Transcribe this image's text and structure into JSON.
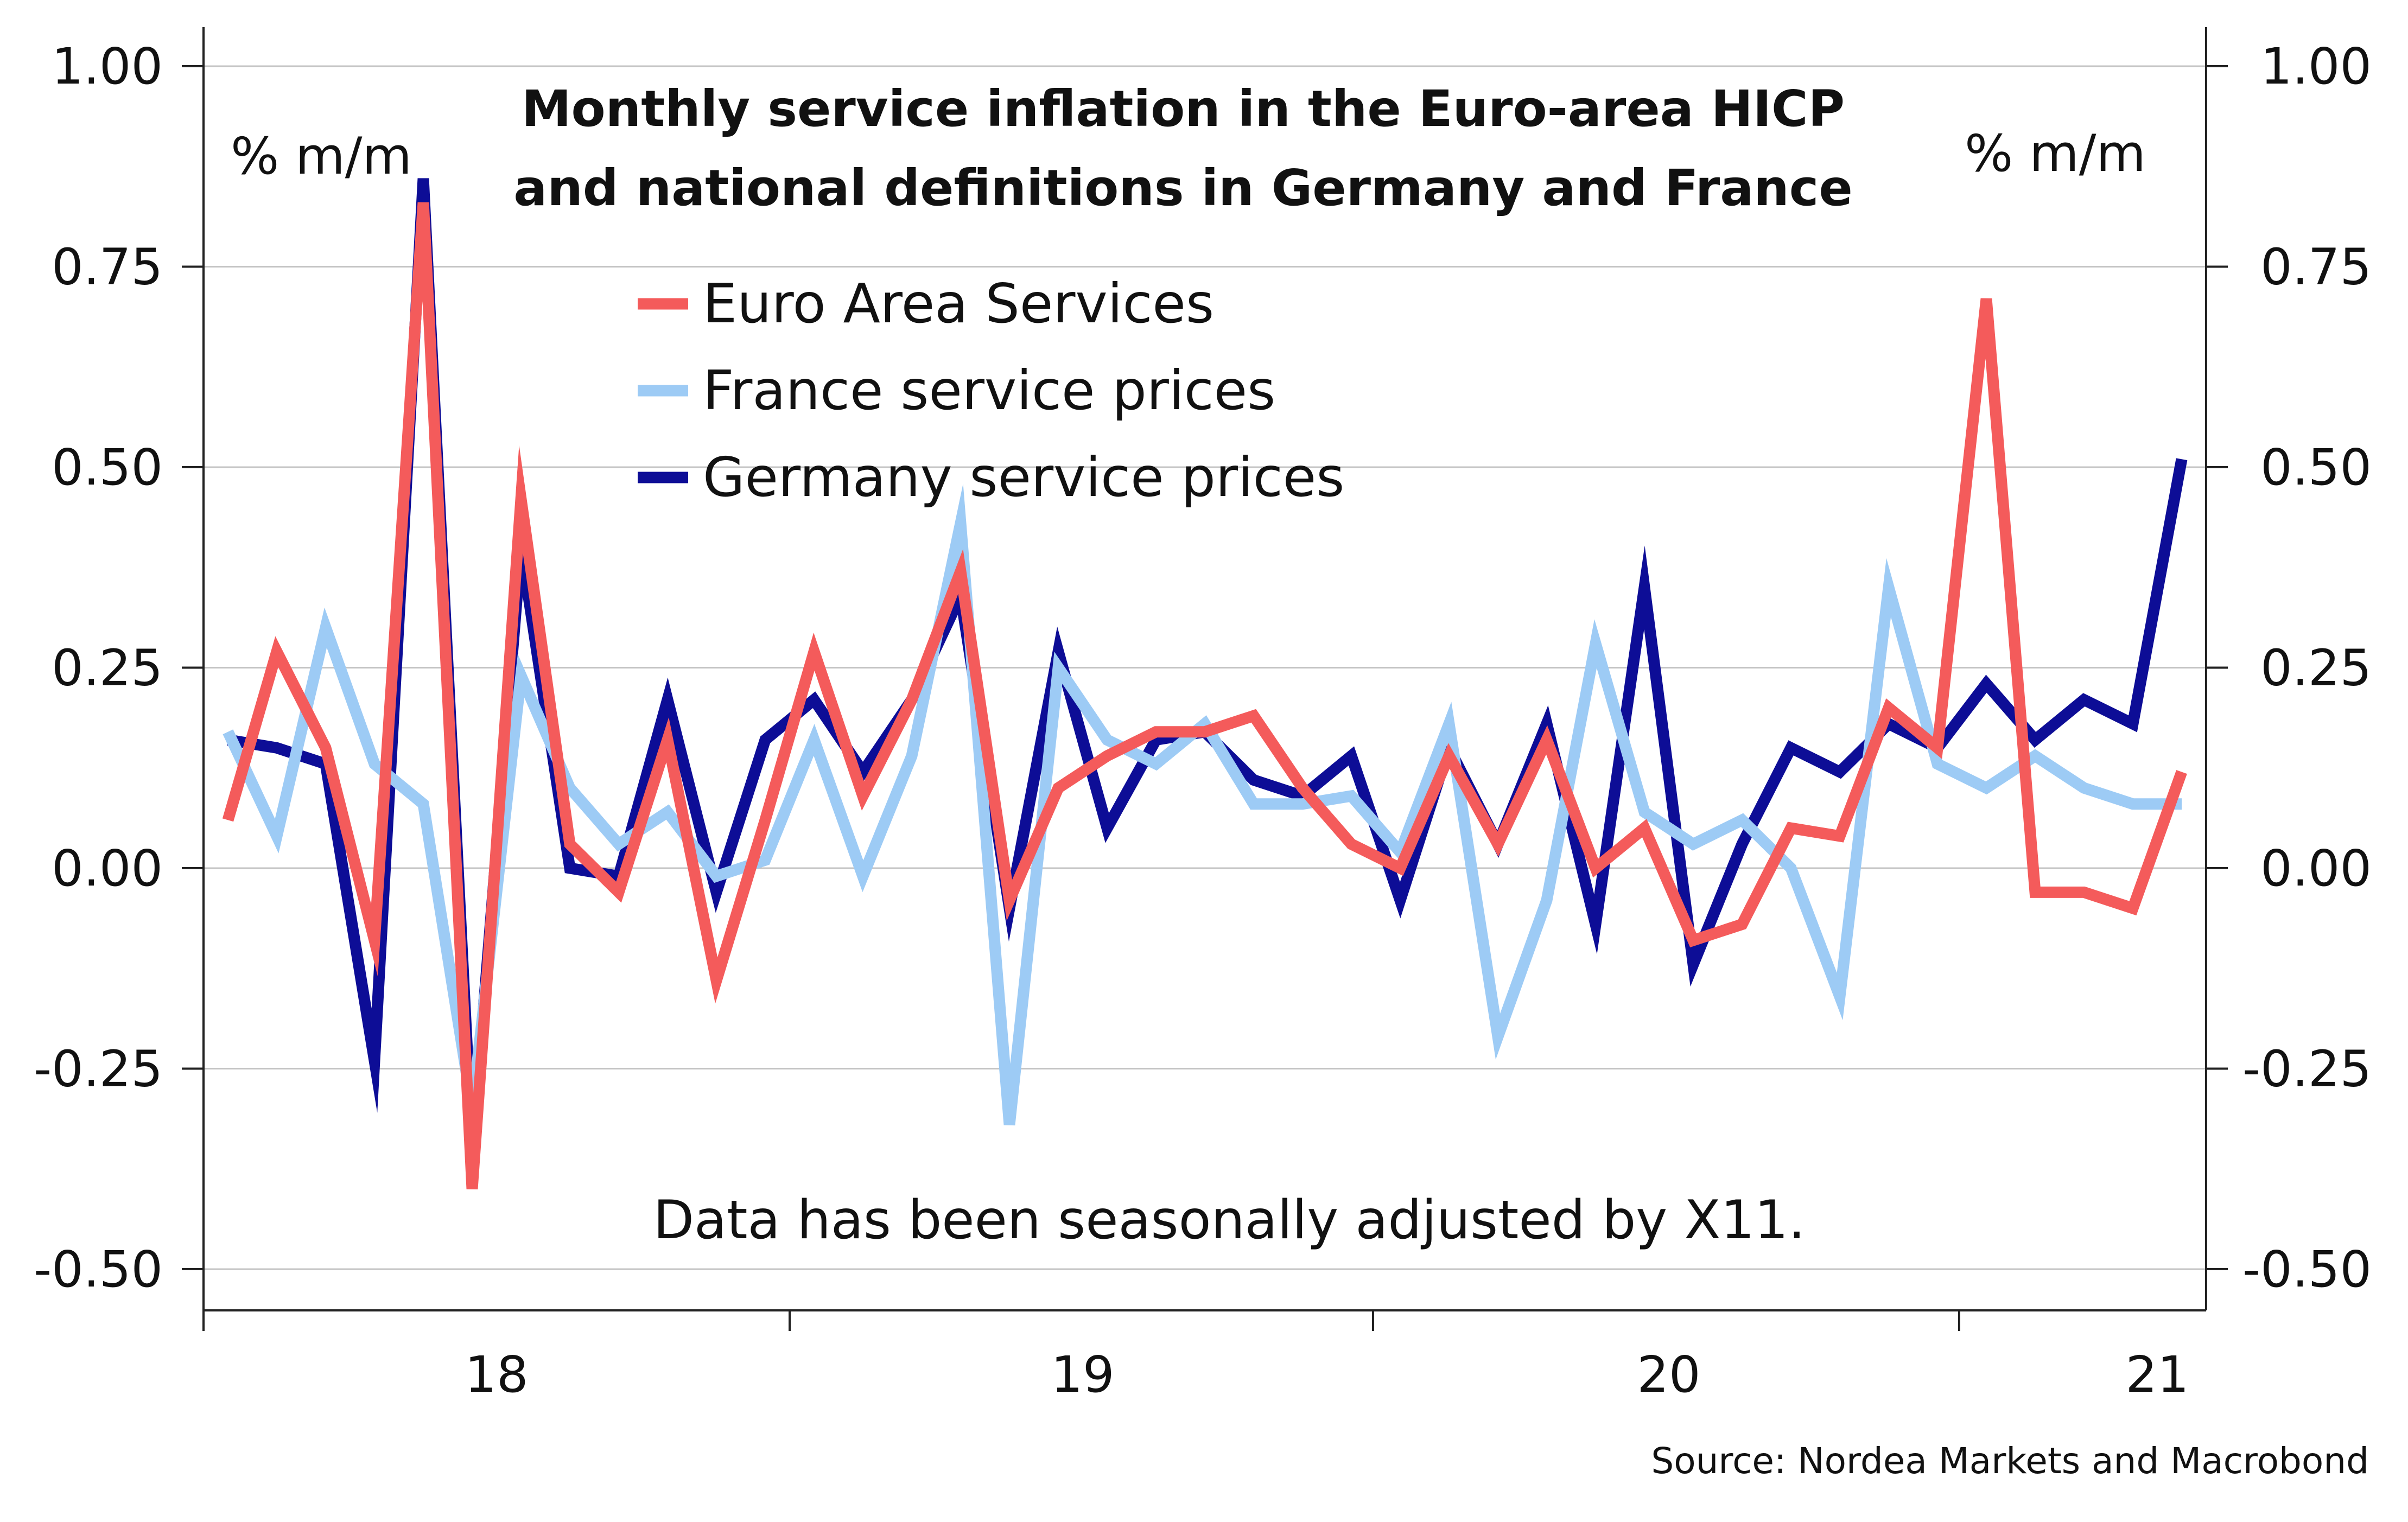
{
  "chart_data": {
    "type": "line",
    "title": "Monthly service inflation in the Euro-area HICP",
    "subtitle": "and national definitions in Germany and France",
    "ylabel_left": "% m/m",
    "ylabel_right": "% m/m",
    "note": "Data has been seasonally adjusted by X11.",
    "source": "Source: Nordea Markets and Macrobond",
    "ylim": [
      -0.55,
      1.05
    ],
    "yticks": [
      "1.00",
      "0.75",
      "0.50",
      "0.25",
      "0.00",
      "-0.25",
      "-0.50"
    ],
    "ytick_values": [
      1.0,
      0.75,
      0.5,
      0.25,
      0.0,
      -0.25,
      -0.5
    ],
    "xticks": [
      "18",
      "19",
      "20",
      "21"
    ],
    "xtick_positions": [
      5.5,
      17.5,
      29.5,
      39.5
    ],
    "xgrid": false,
    "ygrid": true,
    "legend_position": "top-center",
    "x": [
      0,
      1,
      2,
      3,
      4,
      5,
      6,
      7,
      8,
      9,
      10,
      11,
      12,
      13,
      14,
      15,
      16,
      17,
      18,
      19,
      20,
      21,
      22,
      23,
      24,
      25,
      26,
      27,
      28,
      29,
      30,
      31,
      32,
      33,
      34,
      35,
      36,
      37,
      38,
      39,
      40
    ],
    "series": [
      {
        "name": "Euro Area Services",
        "color": "#f45b5b",
        "values": [
          0.06,
          0.27,
          0.15,
          -0.09,
          0.83,
          -0.4,
          0.46,
          0.03,
          -0.03,
          0.16,
          -0.14,
          0.06,
          0.27,
          0.09,
          0.21,
          0.37,
          -0.04,
          0.1,
          0.14,
          0.17,
          0.17,
          0.19,
          0.1,
          0.03,
          0.0,
          0.14,
          0.03,
          0.16,
          0.0,
          0.05,
          -0.09,
          -0.07,
          0.05,
          0.04,
          0.2,
          0.15,
          0.71,
          -0.03,
          -0.03,
          -0.05,
          0.12
        ]
      },
      {
        "name": "France service prices",
        "color": "#9dcbf5",
        "values": [
          0.17,
          0.04,
          0.3,
          0.13,
          0.08,
          -0.3,
          0.24,
          0.1,
          0.03,
          0.07,
          -0.01,
          0.01,
          0.16,
          -0.01,
          0.14,
          0.43,
          -0.32,
          0.25,
          0.16,
          0.13,
          0.18,
          0.08,
          0.08,
          0.09,
          0.02,
          0.18,
          -0.21,
          -0.04,
          0.28,
          0.07,
          0.03,
          0.06,
          0.0,
          -0.16,
          0.35,
          0.13,
          0.1,
          0.14,
          0.1,
          0.08,
          0.08
        ]
      },
      {
        "name": "Germany service prices",
        "color": "#0d0d96",
        "values": [
          0.16,
          0.15,
          0.13,
          -0.24,
          0.86,
          -0.35,
          0.4,
          0.0,
          -0.01,
          0.21,
          -0.03,
          0.16,
          0.21,
          0.12,
          0.21,
          0.34,
          -0.05,
          0.27,
          0.05,
          0.16,
          0.17,
          0.11,
          0.09,
          0.14,
          -0.04,
          0.15,
          0.03,
          0.18,
          -0.07,
          0.35,
          -0.12,
          0.03,
          0.15,
          0.12,
          0.18,
          0.15,
          0.23,
          0.16,
          0.21,
          0.18,
          0.51
        ]
      }
    ]
  }
}
